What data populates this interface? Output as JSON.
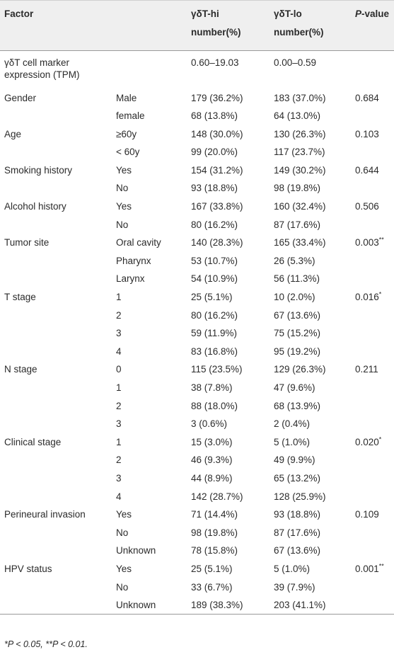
{
  "table": {
    "header": {
      "factor": "Factor",
      "hi": [
        "γδT-hi",
        "number(%)"
      ],
      "lo": [
        "γδT-lo",
        "number(%)"
      ],
      "p": {
        "italic": "P",
        "text": "-value"
      }
    },
    "groups": [
      {
        "factor": "γδT cell marker expression (TPM)",
        "rows": [
          {
            "hi": "0.60–19.03",
            "lo": "0.00–0.59"
          }
        ]
      },
      {
        "factor": "Gender",
        "p": "0.684",
        "rows": [
          {
            "sub": "Male",
            "hi": "179 (36.2%)",
            "lo": "183 (37.0%)"
          },
          {
            "sub": "female",
            "hi": "68 (13.8%)",
            "lo": "64 (13.0%)"
          }
        ]
      },
      {
        "factor": "Age",
        "p": "0.103",
        "rows": [
          {
            "sub": "≥60y",
            "hi": "148 (30.0%)",
            "lo": "130 (26.3%)"
          },
          {
            "sub": "< 60y",
            "hi": "99 (20.0%)",
            "lo": "117 (23.7%)"
          }
        ]
      },
      {
        "factor": "Smoking history",
        "p": "0.644",
        "rows": [
          {
            "sub": "Yes",
            "hi": "154 (31.2%)",
            "lo": "149 (30.2%)"
          },
          {
            "sub": "No",
            "hi": "93 (18.8%)",
            "lo": "98 (19.8%)"
          }
        ]
      },
      {
        "factor": "Alcohol history",
        "p": "0.506",
        "rows": [
          {
            "sub": "Yes",
            "hi": "167 (33.8%)",
            "lo": "160 (32.4%)"
          },
          {
            "sub": "No",
            "hi": "80 (16.2%)",
            "lo": "87 (17.6%)"
          }
        ]
      },
      {
        "factor": "Tumor site",
        "p": "0.003**",
        "rows": [
          {
            "sub": "Oral cavity",
            "hi": "140 (28.3%)",
            "lo": "165 (33.4%)"
          },
          {
            "sub": "Pharynx",
            "hi": "53 (10.7%)",
            "lo": "26 (5.3%)"
          },
          {
            "sub": "Larynx",
            "hi": "54 (10.9%)",
            "lo": "56 (11.3%)"
          }
        ]
      },
      {
        "factor": "T stage",
        "p": "0.016*",
        "rows": [
          {
            "sub": "1",
            "hi": "25 (5.1%)",
            "lo": "10 (2.0%)"
          },
          {
            "sub": "2",
            "hi": "80 (16.2%)",
            "lo": "67 (13.6%)"
          },
          {
            "sub": "3",
            "hi": "59 (11.9%)",
            "lo": "75 (15.2%)"
          },
          {
            "sub": "4",
            "hi": "83 (16.8%)",
            "lo": "95 (19.2%)"
          }
        ]
      },
      {
        "factor": "N stage",
        "p": "0.211",
        "rows": [
          {
            "sub": "0",
            "hi": "115 (23.5%)",
            "lo": "129 (26.3%)"
          },
          {
            "sub": "1",
            "hi": "38 (7.8%)",
            "lo": "47 (9.6%)"
          },
          {
            "sub": "2",
            "hi": "88 (18.0%)",
            "lo": "68 (13.9%)"
          },
          {
            "sub": "3",
            "hi": "3 (0.6%)",
            "lo": "2 (0.4%)"
          }
        ]
      },
      {
        "factor": "Clinical stage",
        "p": "0.020*",
        "rows": [
          {
            "sub": "1",
            "hi": "15 (3.0%)",
            "lo": "5 (1.0%)"
          },
          {
            "sub": "2",
            "hi": "46 (9.3%)",
            "lo": "49 (9.9%)"
          },
          {
            "sub": "3",
            "hi": "44 (8.9%)",
            "lo": "65 (13.2%)"
          },
          {
            "sub": "4",
            "hi": "142 (28.7%)",
            "lo": "128 (25.9%)"
          }
        ]
      },
      {
        "factor": "Perineural invasion",
        "p": "0.109",
        "rows": [
          {
            "sub": "Yes",
            "hi": "71 (14.4%)",
            "lo": "93 (18.8%)"
          },
          {
            "sub": "No",
            "hi": "98 (19.8%)",
            "lo": "87 (17.6%)"
          },
          {
            "sub": "Unknown",
            "hi": "78 (15.8%)",
            "lo": "67 (13.6%)"
          }
        ]
      },
      {
        "factor": "HPV status",
        "p": "0.001**",
        "rows": [
          {
            "sub": "Yes",
            "hi": "25 (5.1%)",
            "lo": "5 (1.0%)"
          },
          {
            "sub": "No",
            "hi": "33 (6.7%)",
            "lo": "39 (7.9%)"
          },
          {
            "sub": "Unknown",
            "hi": "189 (38.3%)",
            "lo": "203 (41.1%)"
          }
        ]
      }
    ],
    "footnote": "*P < 0.05, **P < 0.01."
  }
}
